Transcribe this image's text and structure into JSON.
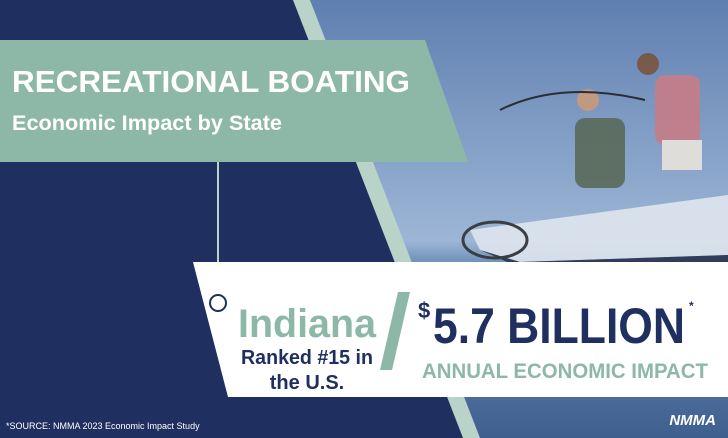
{
  "header": {
    "title": "RECREATIONAL BOATING",
    "subtitle": "Economic Impact by State"
  },
  "state": {
    "name": "Indiana",
    "rank_line1": "Ranked #15 in",
    "rank_line2": "the U.S."
  },
  "impact": {
    "currency": "$",
    "amount": "5.7 BILLION",
    "asterisk": "*",
    "label": "ANNUAL ECONOMIC IMPACT"
  },
  "footer": {
    "source": "*SOURCE: NMMA 2023 Economic Impact Study",
    "logo": "NMMA"
  }
}
